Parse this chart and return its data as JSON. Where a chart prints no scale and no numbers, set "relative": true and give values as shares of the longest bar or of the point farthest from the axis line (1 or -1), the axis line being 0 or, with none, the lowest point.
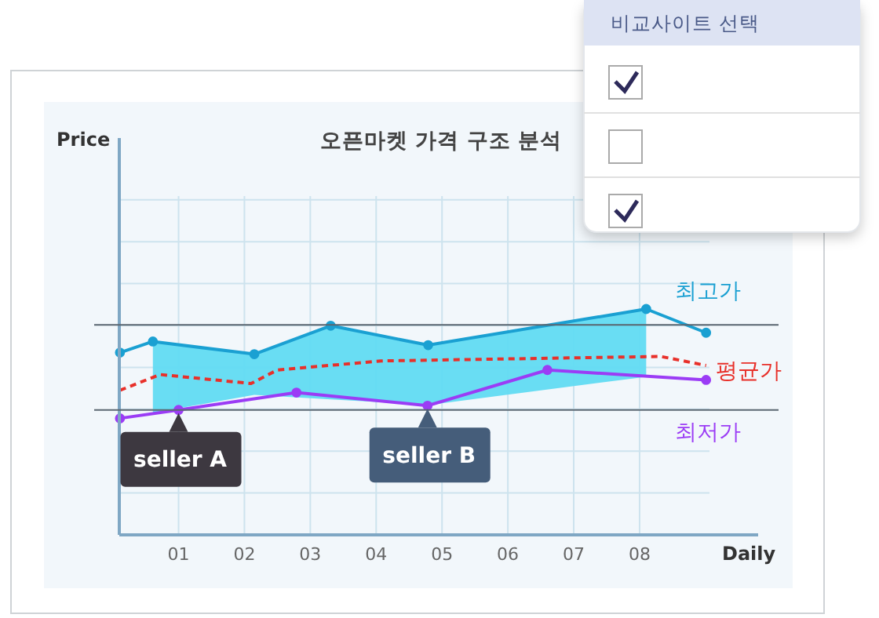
{
  "chart_data": {
    "type": "line",
    "title": "오픈마켓 가격 구조 분석",
    "xlabel": "Daily",
    "relative": true,
    "grid": true,
    "xlim": [
      0.1,
      9.8
    ],
    "xticks": [
      {
        "value": 1,
        "label": "01"
      },
      {
        "value": 2,
        "label": "02"
      },
      {
        "value": 3,
        "label": "03"
      },
      {
        "value": 4,
        "label": "04"
      },
      {
        "value": 5,
        "label": "05"
      },
      {
        "value": 6,
        "label": "06"
      },
      {
        "value": 7,
        "label": "07"
      },
      {
        "value": 8,
        "label": "08"
      }
    ],
    "series": [
      {
        "name": "최고가",
        "color": "#1aa0d2",
        "marker": "circle",
        "line_style": "solid",
        "x": [
          0.11,
          0.61,
          2.15,
          3.31,
          4.79,
          8.1,
          9.01
        ],
        "values": [
          0.807,
          0.856,
          0.8,
          0.926,
          0.84,
          1,
          0.895
        ],
        "upper": [
          null,
          0.856,
          0.8,
          0.926,
          0.84,
          1,
          null
        ],
        "lower": [
          null,
          0.54,
          0.62,
          0.6,
          0.575,
          0.7,
          null
        ]
      },
      {
        "name": "평균가",
        "color": "#e8302a",
        "marker": "none",
        "line_style": "dashed",
        "x": [
          0.11,
          0.72,
          2.1,
          2.5,
          4.07,
          8.32,
          9.01
        ],
        "values": [
          0.64,
          0.71,
          0.67,
          0.73,
          0.77,
          0.79,
          0.75
        ]
      },
      {
        "name": "최저가",
        "color": "#9b3cf5",
        "marker": "circle",
        "line_style": "solid",
        "x": [
          0.11,
          1.0,
          2.79,
          4.78,
          6.6,
          9.01
        ],
        "values": [
          0.516,
          0.553,
          0.63,
          0.572,
          0.73,
          0.686
        ]
      }
    ],
    "ref_lines": [
      {
        "axis": "y",
        "value": 0.93,
        "color": "#5a6670"
      },
      {
        "axis": "y",
        "value": 0.553,
        "color": "#5a6670"
      }
    ],
    "annotations": [
      {
        "text": "seller A",
        "x": 1.0,
        "y": 0.553
      },
      {
        "text": "seller B",
        "x": 4.78,
        "y": 0.572
      },
      "Price",
      "비교사이트 선택"
    ]
  }
}
